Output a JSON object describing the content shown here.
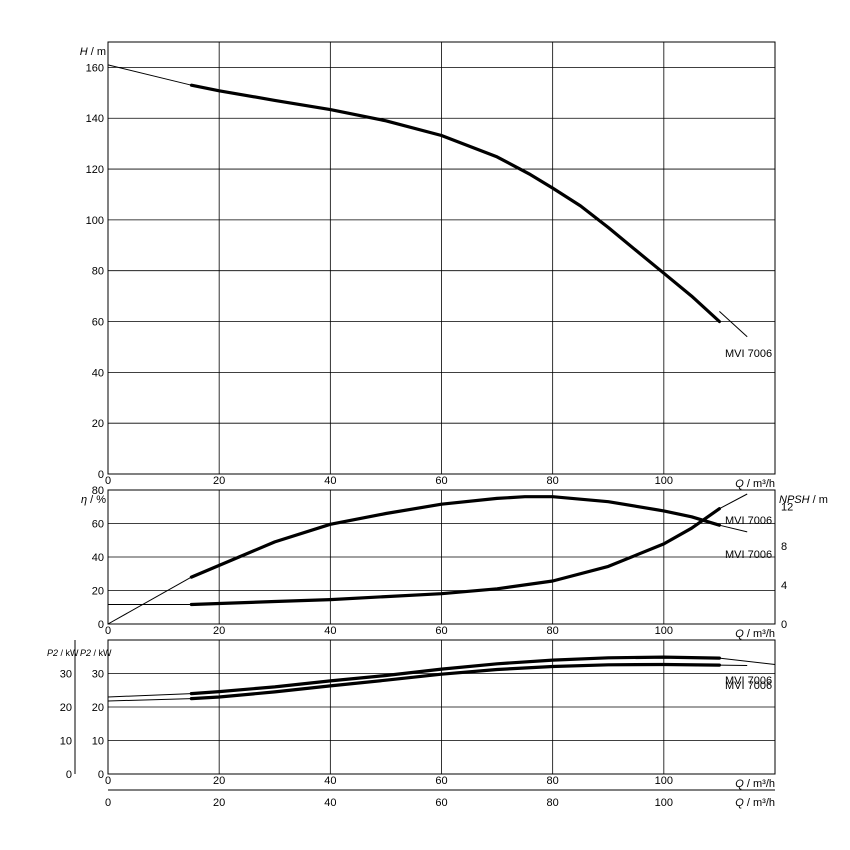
{
  "chart_data": [
    {
      "type": "line",
      "name_panel": "head",
      "ylabel": "H / m",
      "xlabel": "Q / m³/h",
      "xlim": [
        0,
        120
      ],
      "ylim": [
        0,
        170
      ],
      "xticks": [
        0,
        20,
        40,
        60,
        80,
        100
      ],
      "yticks": [
        0,
        20,
        40,
        60,
        80,
        100,
        120,
        140,
        160
      ],
      "grid": true,
      "series": [
        {
          "name": "MVI 7006",
          "thin_segments": [
            {
              "x": [
                0,
                15
              ],
              "y": [
                161,
                153
              ]
            },
            {
              "x": [
                110,
                115
              ],
              "y": [
                64,
                54
              ]
            }
          ],
          "x": [
            15,
            20,
            30,
            40,
            50,
            60,
            70,
            76,
            80,
            85,
            90,
            95,
            100,
            105,
            110
          ],
          "y": [
            153,
            150.8,
            147,
            143.4,
            139,
            133.2,
            124.8,
            117.8,
            112.5,
            105.5,
            97,
            88,
            79,
            70,
            60
          ]
        }
      ]
    },
    {
      "type": "line",
      "name_panel": "efficiency_npsh",
      "ylabel": "η / %",
      "y2label": "NPSH / m",
      "xlabel": "Q / m³/h",
      "xlim": [
        0,
        120
      ],
      "ylim": [
        0,
        80
      ],
      "y2lim": [
        0,
        13.714
      ],
      "xticks": [
        0,
        20,
        40,
        60,
        80,
        100
      ],
      "yticks": [
        0,
        20,
        40,
        60,
        80
      ],
      "y2ticks": [
        0,
        4,
        8,
        12
      ],
      "grid": true,
      "series": [
        {
          "name": "MVI 7006",
          "axis": "left",
          "thin_segments": [
            {
              "x": [
                0,
                15
              ],
              "y": [
                0,
                28
              ]
            },
            {
              "x": [
                110,
                115
              ],
              "y": [
                59,
                55
              ]
            }
          ],
          "x": [
            15,
            20,
            30,
            40,
            50,
            60,
            70,
            75,
            80,
            90,
            100,
            105,
            110
          ],
          "y": [
            28,
            35,
            49,
            59.5,
            66,
            71.5,
            75,
            76,
            76,
            73,
            67.5,
            64,
            59
          ]
        },
        {
          "name": "MVI 7006",
          "axis": "right",
          "thin_segments": [
            {
              "x": [
                0,
                15
              ],
              "y": [
                2,
                2
              ]
            },
            {
              "x": [
                110,
                115
              ],
              "y": [
                11.8,
                13.3
              ]
            }
          ],
          "x": [
            15,
            20,
            30,
            40,
            50,
            60,
            70,
            80,
            90,
            100,
            105,
            110
          ],
          "y": [
            2,
            2.1,
            2.3,
            2.5,
            2.8,
            3.1,
            3.6,
            4.4,
            5.9,
            8.2,
            9.8,
            11.8
          ]
        }
      ]
    },
    {
      "type": "line",
      "name_panel": "power",
      "ylabel": "P2 / kW",
      "ylabel_outer": "P2 / kW",
      "xlabel": "Q / m³/h",
      "xlim": [
        0,
        120
      ],
      "ylim": [
        0,
        40
      ],
      "xticks": [
        0,
        20,
        40,
        60,
        80,
        100
      ],
      "yticks": [
        0,
        10,
        20,
        30
      ],
      "grid": true,
      "series": [
        {
          "name": "MVI 7006",
          "thin_segments": [
            {
              "x": [
                0,
                15
              ],
              "y": [
                23,
                24
              ]
            },
            {
              "x": [
                110,
                120
              ],
              "y": [
                34.6,
                32.7
              ]
            }
          ],
          "x": [
            15,
            20,
            30,
            40,
            50,
            60,
            70,
            80,
            90,
            100,
            110
          ],
          "y": [
            24,
            24.6,
            26,
            27.8,
            29.4,
            31.3,
            32.9,
            34.0,
            34.7,
            34.9,
            34.6
          ]
        },
        {
          "name": "MVI 7006",
          "thin_segments": [
            {
              "x": [
                0,
                15
              ],
              "y": [
                21.8,
                22.5
              ]
            },
            {
              "x": [
                110,
                115
              ],
              "y": [
                32.5,
                32.4
              ]
            }
          ],
          "x": [
            15,
            20,
            30,
            40,
            50,
            60,
            70,
            80,
            90,
            100,
            110
          ],
          "y": [
            22.5,
            23,
            24.5,
            26.3,
            28,
            29.8,
            31.2,
            32.1,
            32.6,
            32.7,
            32.5
          ]
        }
      ]
    }
  ],
  "bottom_axis": {
    "xlabel": "Q / m³/h",
    "xticks": [
      0,
      20,
      40,
      60,
      80,
      100
    ]
  }
}
